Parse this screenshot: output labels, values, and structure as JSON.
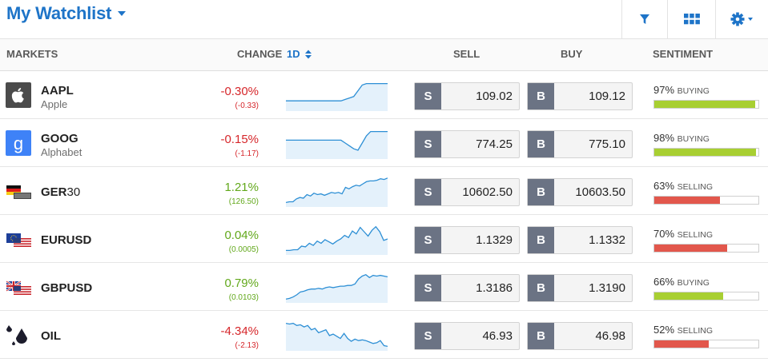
{
  "header": {
    "title": "My Watchlist",
    "filter_icon": "filter-icon",
    "grid_icon": "grid-view-icon",
    "settings_icon": "gear-icon"
  },
  "columns": {
    "markets": "MARKETS",
    "change": "CHANGE",
    "period": "1D",
    "sell": "SELL",
    "buy": "BUY",
    "sentiment": "SENTIMENT"
  },
  "colors": {
    "accent": "#1e74c8",
    "negative": "#d6262a",
    "positive": "#62a81b",
    "buying_bar": "#a8cf32",
    "selling_bar": "#e2574c",
    "price_tag": "#6b7384",
    "sparkline": "#2d8fd5",
    "sparkline_fill": "#e4f1fb"
  },
  "rows": [
    {
      "symbol": "AAPL",
      "name": "Apple",
      "icon": "apple-logo-icon",
      "change": "-0.30%",
      "change_abs": "(-0.33)",
      "direction": "neg",
      "sell_tag": "S",
      "sell": "109.02",
      "buy_tag": "B",
      "buy": "109.12",
      "sentiment_pct": "97%",
      "sentiment_word": "BUYING",
      "sentiment_value": 97,
      "sentiment_side": "buy",
      "spark": [
        12,
        12,
        12,
        12,
        12,
        12,
        12,
        12,
        12,
        12,
        12,
        12,
        12,
        12,
        14,
        16,
        18,
        26,
        34,
        36,
        36,
        36,
        36,
        36,
        36
      ]
    },
    {
      "symbol": "GOOG",
      "name": "Alphabet",
      "icon": "google-logo-icon",
      "change": "-0.15%",
      "change_abs": "(-1.17)",
      "direction": "neg",
      "sell_tag": "S",
      "sell": "774.25",
      "buy_tag": "B",
      "buy": "775.10",
      "sentiment_pct": "98%",
      "sentiment_word": "BUYING",
      "sentiment_value": 98,
      "sentiment_side": "buy",
      "spark": [
        24,
        24,
        24,
        24,
        24,
        24,
        24,
        24,
        24,
        24,
        24,
        24,
        24,
        24,
        20,
        16,
        12,
        10,
        20,
        30,
        36,
        36,
        36,
        36,
        36
      ]
    },
    {
      "symbol_bold": "GER",
      "symbol_light": "30",
      "name": "",
      "icon": "germany-flag-icon",
      "change": "1.21%",
      "change_abs": "(126.50)",
      "direction": "pos",
      "sell_tag": "S",
      "sell": "10602.50",
      "buy_tag": "B",
      "buy": "10603.50",
      "sentiment_pct": "63%",
      "sentiment_word": "SELLING",
      "sentiment_value": 63,
      "sentiment_side": "sell",
      "spark": [
        4,
        5,
        5,
        9,
        11,
        10,
        15,
        13,
        17,
        15,
        16,
        14,
        16,
        18,
        17,
        18,
        16,
        25,
        23,
        26,
        28,
        27,
        30,
        33,
        34,
        34,
        35,
        37,
        36,
        38
      ]
    },
    {
      "symbol": "EURUSD",
      "name": "",
      "icon": "eu-us-flags-icon",
      "change": "0.04%",
      "change_abs": "(0.0005)",
      "direction": "pos",
      "sell_tag": "S",
      "sell": "1.1329",
      "buy_tag": "B",
      "buy": "1.1332",
      "sentiment_pct": "70%",
      "sentiment_word": "SELLING",
      "sentiment_value": 70,
      "sentiment_side": "sell",
      "spark": [
        4,
        4,
        5,
        5,
        10,
        9,
        14,
        11,
        17,
        14,
        19,
        16,
        13,
        17,
        20,
        25,
        22,
        31,
        27,
        36,
        30,
        24,
        32,
        37,
        30,
        18,
        20
      ]
    },
    {
      "symbol": "GBPUSD",
      "name": "",
      "icon": "uk-us-flags-icon",
      "change": "0.79%",
      "change_abs": "(0.0103)",
      "direction": "pos",
      "sell_tag": "S",
      "sell": "1.3186",
      "buy_tag": "B",
      "buy": "1.3190",
      "sentiment_pct": "66%",
      "sentiment_word": "BUYING",
      "sentiment_value": 66,
      "sentiment_side": "buy",
      "spark": [
        3,
        4,
        6,
        9,
        13,
        14,
        16,
        17,
        17,
        18,
        17,
        19,
        20,
        19,
        20,
        21,
        21,
        22,
        22,
        24,
        31,
        35,
        37,
        33,
        36,
        35,
        36,
        35,
        34
      ]
    },
    {
      "symbol": "OIL",
      "name": "",
      "icon": "oil-drop-icon",
      "change": "-4.34%",
      "change_abs": "(-2.13)",
      "direction": "neg",
      "sell_tag": "S",
      "sell": "46.93",
      "buy_tag": "B",
      "buy": "46.98",
      "sentiment_pct": "52%",
      "sentiment_word": "SELLING",
      "sentiment_value": 52,
      "sentiment_side": "sell",
      "spark": [
        36,
        35,
        36,
        33,
        34,
        31,
        33,
        27,
        29,
        23,
        25,
        27,
        19,
        21,
        18,
        15,
        22,
        15,
        11,
        14,
        12,
        13,
        12,
        10,
        8,
        9,
        12,
        5,
        4
      ]
    }
  ]
}
